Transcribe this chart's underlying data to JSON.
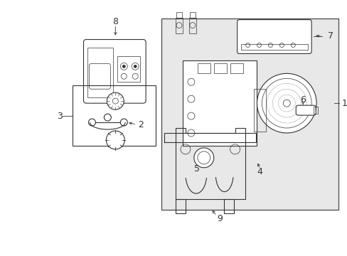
{
  "figsize": [
    4.89,
    3.6
  ],
  "dpi": 100,
  "bg": "#ffffff",
  "line_color": "#333333",
  "gray_fill": "#e8e8e8",
  "lw_main": 0.8,
  "lw_thin": 0.5,
  "lw_border": 1.0
}
